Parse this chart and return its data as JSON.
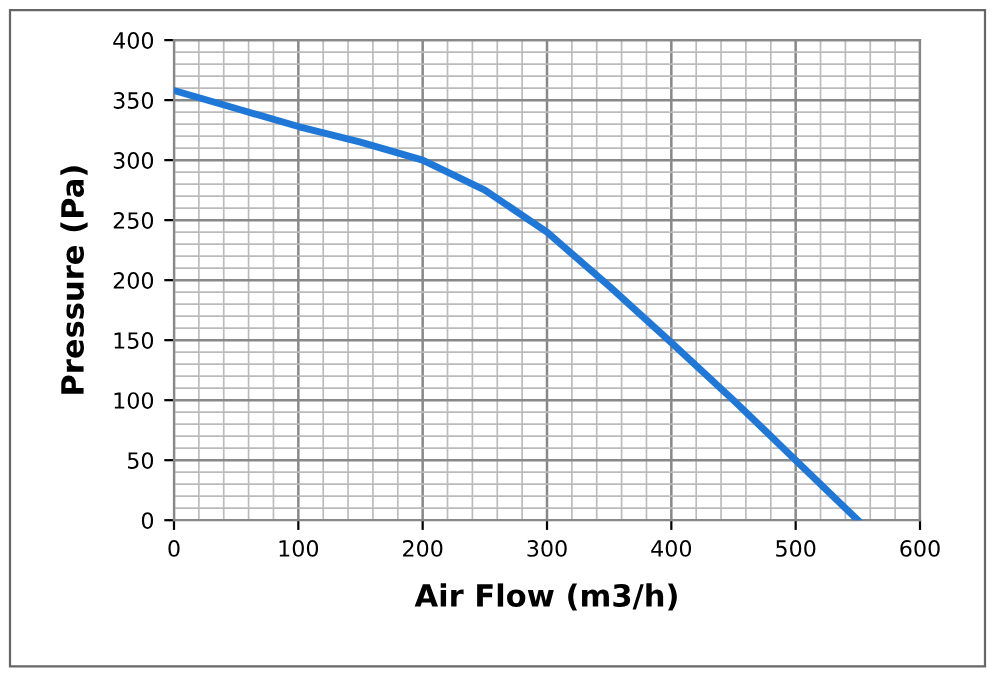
{
  "chart_data": {
    "type": "line",
    "xlabel": "Air Flow (m3/h)",
    "ylabel": "Pressure (Pa)",
    "x": [
      0,
      50,
      100,
      150,
      200,
      250,
      300,
      350,
      400,
      450,
      500,
      550
    ],
    "series": [
      {
        "color": "#1f78d8",
        "values": [
          358,
          343,
          328,
          315,
          300,
          275,
          240,
          195,
          148,
          100,
          50,
          0
        ]
      }
    ],
    "xlim": [
      0,
      600
    ],
    "ylim": [
      0,
      400
    ],
    "xticks": [
      0,
      100,
      200,
      300,
      400,
      500,
      600
    ],
    "yticks": [
      0,
      50,
      100,
      150,
      200,
      250,
      300,
      350,
      400
    ],
    "grid": true,
    "marker": "none",
    "line_style": "solid"
  }
}
